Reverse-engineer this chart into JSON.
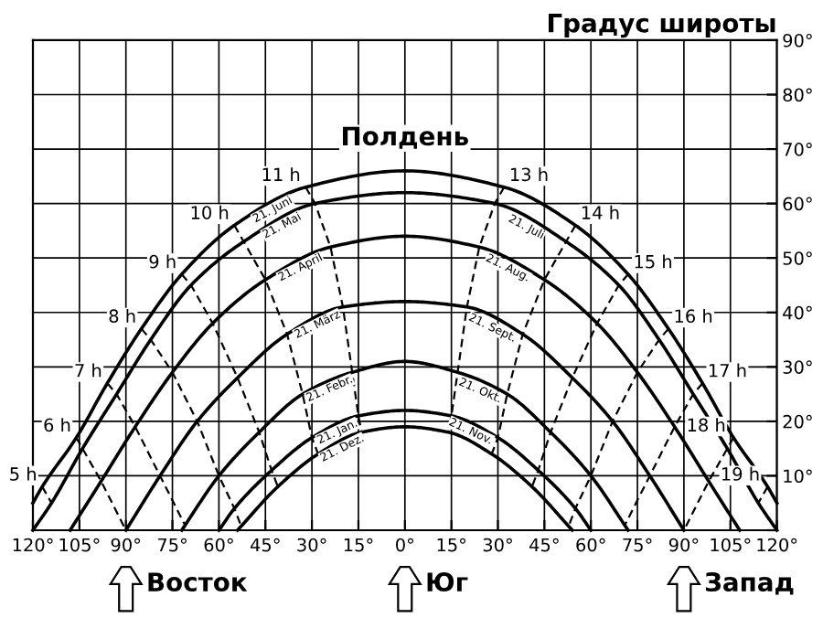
{
  "chart_data": {
    "type": "line",
    "ylabel": "Градус широты",
    "xlim": [
      -120,
      120
    ],
    "ylim": [
      0,
      90
    ],
    "xticks": [
      {
        "value": -120,
        "label": "120°"
      },
      {
        "value": -105,
        "label": "105°"
      },
      {
        "value": -90,
        "label": "90°"
      },
      {
        "value": -75,
        "label": "75°"
      },
      {
        "value": -60,
        "label": "60°"
      },
      {
        "value": -45,
        "label": "45°"
      },
      {
        "value": -30,
        "label": "30°"
      },
      {
        "value": -15,
        "label": "15°"
      },
      {
        "value": 0,
        "label": "0°"
      },
      {
        "value": 15,
        "label": "15°"
      },
      {
        "value": 30,
        "label": "30°"
      },
      {
        "value": 45,
        "label": "45°"
      },
      {
        "value": 60,
        "label": "60°"
      },
      {
        "value": 75,
        "label": "75°"
      },
      {
        "value": 90,
        "label": "90°"
      },
      {
        "value": 105,
        "label": "105°"
      },
      {
        "value": 120,
        "label": "120°"
      }
    ],
    "yticks": [
      {
        "value": 0,
        "label": null
      },
      {
        "value": 10,
        "label": "10°"
      },
      {
        "value": 20,
        "label": "20°"
      },
      {
        "value": 30,
        "label": "30°"
      },
      {
        "value": 40,
        "label": "40°"
      },
      {
        "value": 50,
        "label": "50°"
      },
      {
        "value": 60,
        "label": "60°"
      },
      {
        "value": 70,
        "label": "70°"
      },
      {
        "value": 80,
        "label": "80°"
      },
      {
        "value": 90,
        "label": "90°"
      }
    ],
    "grid": true,
    "legend": false,
    "marker": "none",
    "annotations": [
      {
        "text": "Полдень",
        "x": 0,
        "y": 66
      },
      {
        "text": "21. Juli",
        "x": 40,
        "y": 57
      },
      {
        "text": "21. Aug.",
        "x": 34,
        "y": 49.5
      },
      {
        "text": "21. Sept.",
        "x": 29,
        "y": 38.5
      },
      {
        "text": "21. Okt.",
        "x": 25,
        "y": 27
      },
      {
        "text": "21. Nov.",
        "x": 22,
        "y": 19.5
      },
      "Восток",
      "Юг",
      "Запад"
    ],
    "series": [
      {
        "name": "21. Juni",
        "color": "#000000",
        "line_style": "solid",
        "x": [
          -120,
          -117,
          -106,
          -96,
          -85,
          -72,
          -55,
          -32,
          0,
          32,
          55,
          72,
          85,
          96,
          106,
          117,
          120
        ],
        "values": [
          5,
          8,
          17,
          27,
          37,
          47,
          56,
          63,
          66,
          63,
          56,
          47,
          37,
          27,
          17,
          8,
          5
        ]
      },
      {
        "name": "21. Mai",
        "color": "#000000",
        "line_style": "solid",
        "x": [
          -120,
          -114,
          -104,
          -93,
          -82,
          -69,
          -52,
          -29,
          0,
          29,
          52,
          69,
          82,
          93,
          104,
          114,
          120
        ],
        "values": [
          0,
          5,
          15,
          25,
          35,
          45,
          53,
          60,
          62,
          60,
          53,
          45,
          35,
          25,
          15,
          5,
          0
        ]
      },
      {
        "name": "21. April",
        "color": "#000000",
        "line_style": "solid",
        "x": [
          -108,
          -98,
          -87,
          -75,
          -62,
          -45,
          -24,
          0,
          24,
          45,
          62,
          75,
          87,
          98,
          108
        ],
        "values": [
          0,
          9,
          19,
          29,
          38,
          46,
          52,
          54,
          52,
          46,
          38,
          29,
          19,
          9,
          0
        ]
      },
      {
        "name": "21. März",
        "color": "#000000",
        "line_style": "solid",
        "x": [
          -90,
          -79,
          -67,
          -54,
          -38,
          -20,
          0,
          20,
          38,
          54,
          67,
          79,
          90
        ],
        "values": [
          0,
          10,
          20,
          28,
          36,
          41,
          42,
          41,
          36,
          28,
          20,
          10,
          0
        ]
      },
      {
        "name": "21. Febr.",
        "color": "#000000",
        "line_style": "solid",
        "x": [
          -72,
          -60,
          -47,
          -33,
          -17,
          0,
          17,
          33,
          47,
          60,
          72
        ],
        "values": [
          0,
          10,
          18,
          25,
          29,
          31,
          29,
          25,
          18,
          10,
          0
        ]
      },
      {
        "name": "21. Jan.",
        "color": "#000000",
        "line_style": "solid",
        "x": [
          -60,
          -55,
          -43,
          -30,
          -15,
          0,
          15,
          30,
          43,
          55,
          60
        ],
        "values": [
          0,
          4,
          11,
          17,
          21,
          22,
          21,
          17,
          11,
          4,
          0
        ]
      },
      {
        "name": "21. Dez.",
        "color": "#000000",
        "line_style": "solid",
        "x": [
          -54,
          -41,
          -28,
          -14,
          0,
          14,
          28,
          41,
          54
        ],
        "values": [
          0,
          8,
          14,
          18,
          19,
          18,
          14,
          8,
          0
        ]
      },
      {
        "name": "5 h",
        "color": "#000000",
        "line_style": "dashed",
        "x": [
          -117,
          -114
        ],
        "values": [
          8,
          5
        ]
      },
      {
        "name": "6 h",
        "color": "#000000",
        "line_style": "dashed",
        "x": [
          -106,
          -104,
          -98,
          -90
        ],
        "values": [
          17,
          15,
          9,
          0
        ]
      },
      {
        "name": "7 h",
        "color": "#000000",
        "line_style": "dashed",
        "x": [
          -96,
          -93,
          -87,
          -79,
          -71
        ],
        "values": [
          27,
          25,
          19,
          10,
          1
        ]
      },
      {
        "name": "8 h",
        "color": "#000000",
        "line_style": "dashed",
        "x": [
          -85,
          -82,
          -75,
          -67,
          -60,
          -55,
          -53
        ],
        "values": [
          37,
          35,
          29,
          20,
          10,
          4,
          1
        ]
      },
      {
        "name": "9 h",
        "color": "#000000",
        "line_style": "dashed",
        "x": [
          -72,
          -69,
          -62,
          -54,
          -47,
          -43,
          -41
        ],
        "values": [
          47,
          45,
          38,
          28,
          18,
          11,
          8
        ]
      },
      {
        "name": "10 h",
        "color": "#000000",
        "line_style": "dashed",
        "x": [
          -55,
          -52,
          -45,
          -38,
          -33,
          -30,
          -28
        ],
        "values": [
          56,
          53,
          46,
          36,
          25,
          17,
          14
        ]
      },
      {
        "name": "11 h",
        "color": "#000000",
        "line_style": "dashed",
        "x": [
          -32,
          -29,
          -24,
          -20,
          -17,
          -15,
          -14
        ],
        "values": [
          63,
          60,
          52,
          41,
          29,
          21,
          18
        ]
      },
      {
        "name": "13 h",
        "color": "#000000",
        "line_style": "dashed",
        "x": [
          32,
          29,
          24,
          20,
          17,
          15,
          14
        ],
        "values": [
          63,
          60,
          52,
          41,
          29,
          21,
          18
        ]
      },
      {
        "name": "14 h",
        "color": "#000000",
        "line_style": "dashed",
        "x": [
          55,
          52,
          45,
          38,
          33,
          30,
          28
        ],
        "values": [
          56,
          53,
          46,
          36,
          25,
          17,
          14
        ]
      },
      {
        "name": "15 h",
        "color": "#000000",
        "line_style": "dashed",
        "x": [
          72,
          69,
          62,
          54,
          47,
          43,
          41
        ],
        "values": [
          47,
          45,
          38,
          28,
          18,
          11,
          8
        ]
      },
      {
        "name": "16 h",
        "color": "#000000",
        "line_style": "dashed",
        "x": [
          85,
          82,
          75,
          67,
          60,
          55,
          53
        ],
        "values": [
          37,
          35,
          29,
          20,
          10,
          4,
          1
        ]
      },
      {
        "name": "17 h",
        "color": "#000000",
        "line_style": "dashed",
        "x": [
          96,
          93,
          87,
          79,
          71
        ],
        "values": [
          27,
          25,
          19,
          10,
          1
        ]
      },
      {
        "name": "18 h",
        "color": "#000000",
        "line_style": "dashed",
        "x": [
          106,
          104,
          98,
          90
        ],
        "values": [
          17,
          15,
          9,
          0
        ]
      },
      {
        "name": "19 h",
        "color": "#000000",
        "line_style": "dashed",
        "x": [
          117,
          114
        ],
        "values": [
          8,
          5
        ]
      }
    ]
  }
}
